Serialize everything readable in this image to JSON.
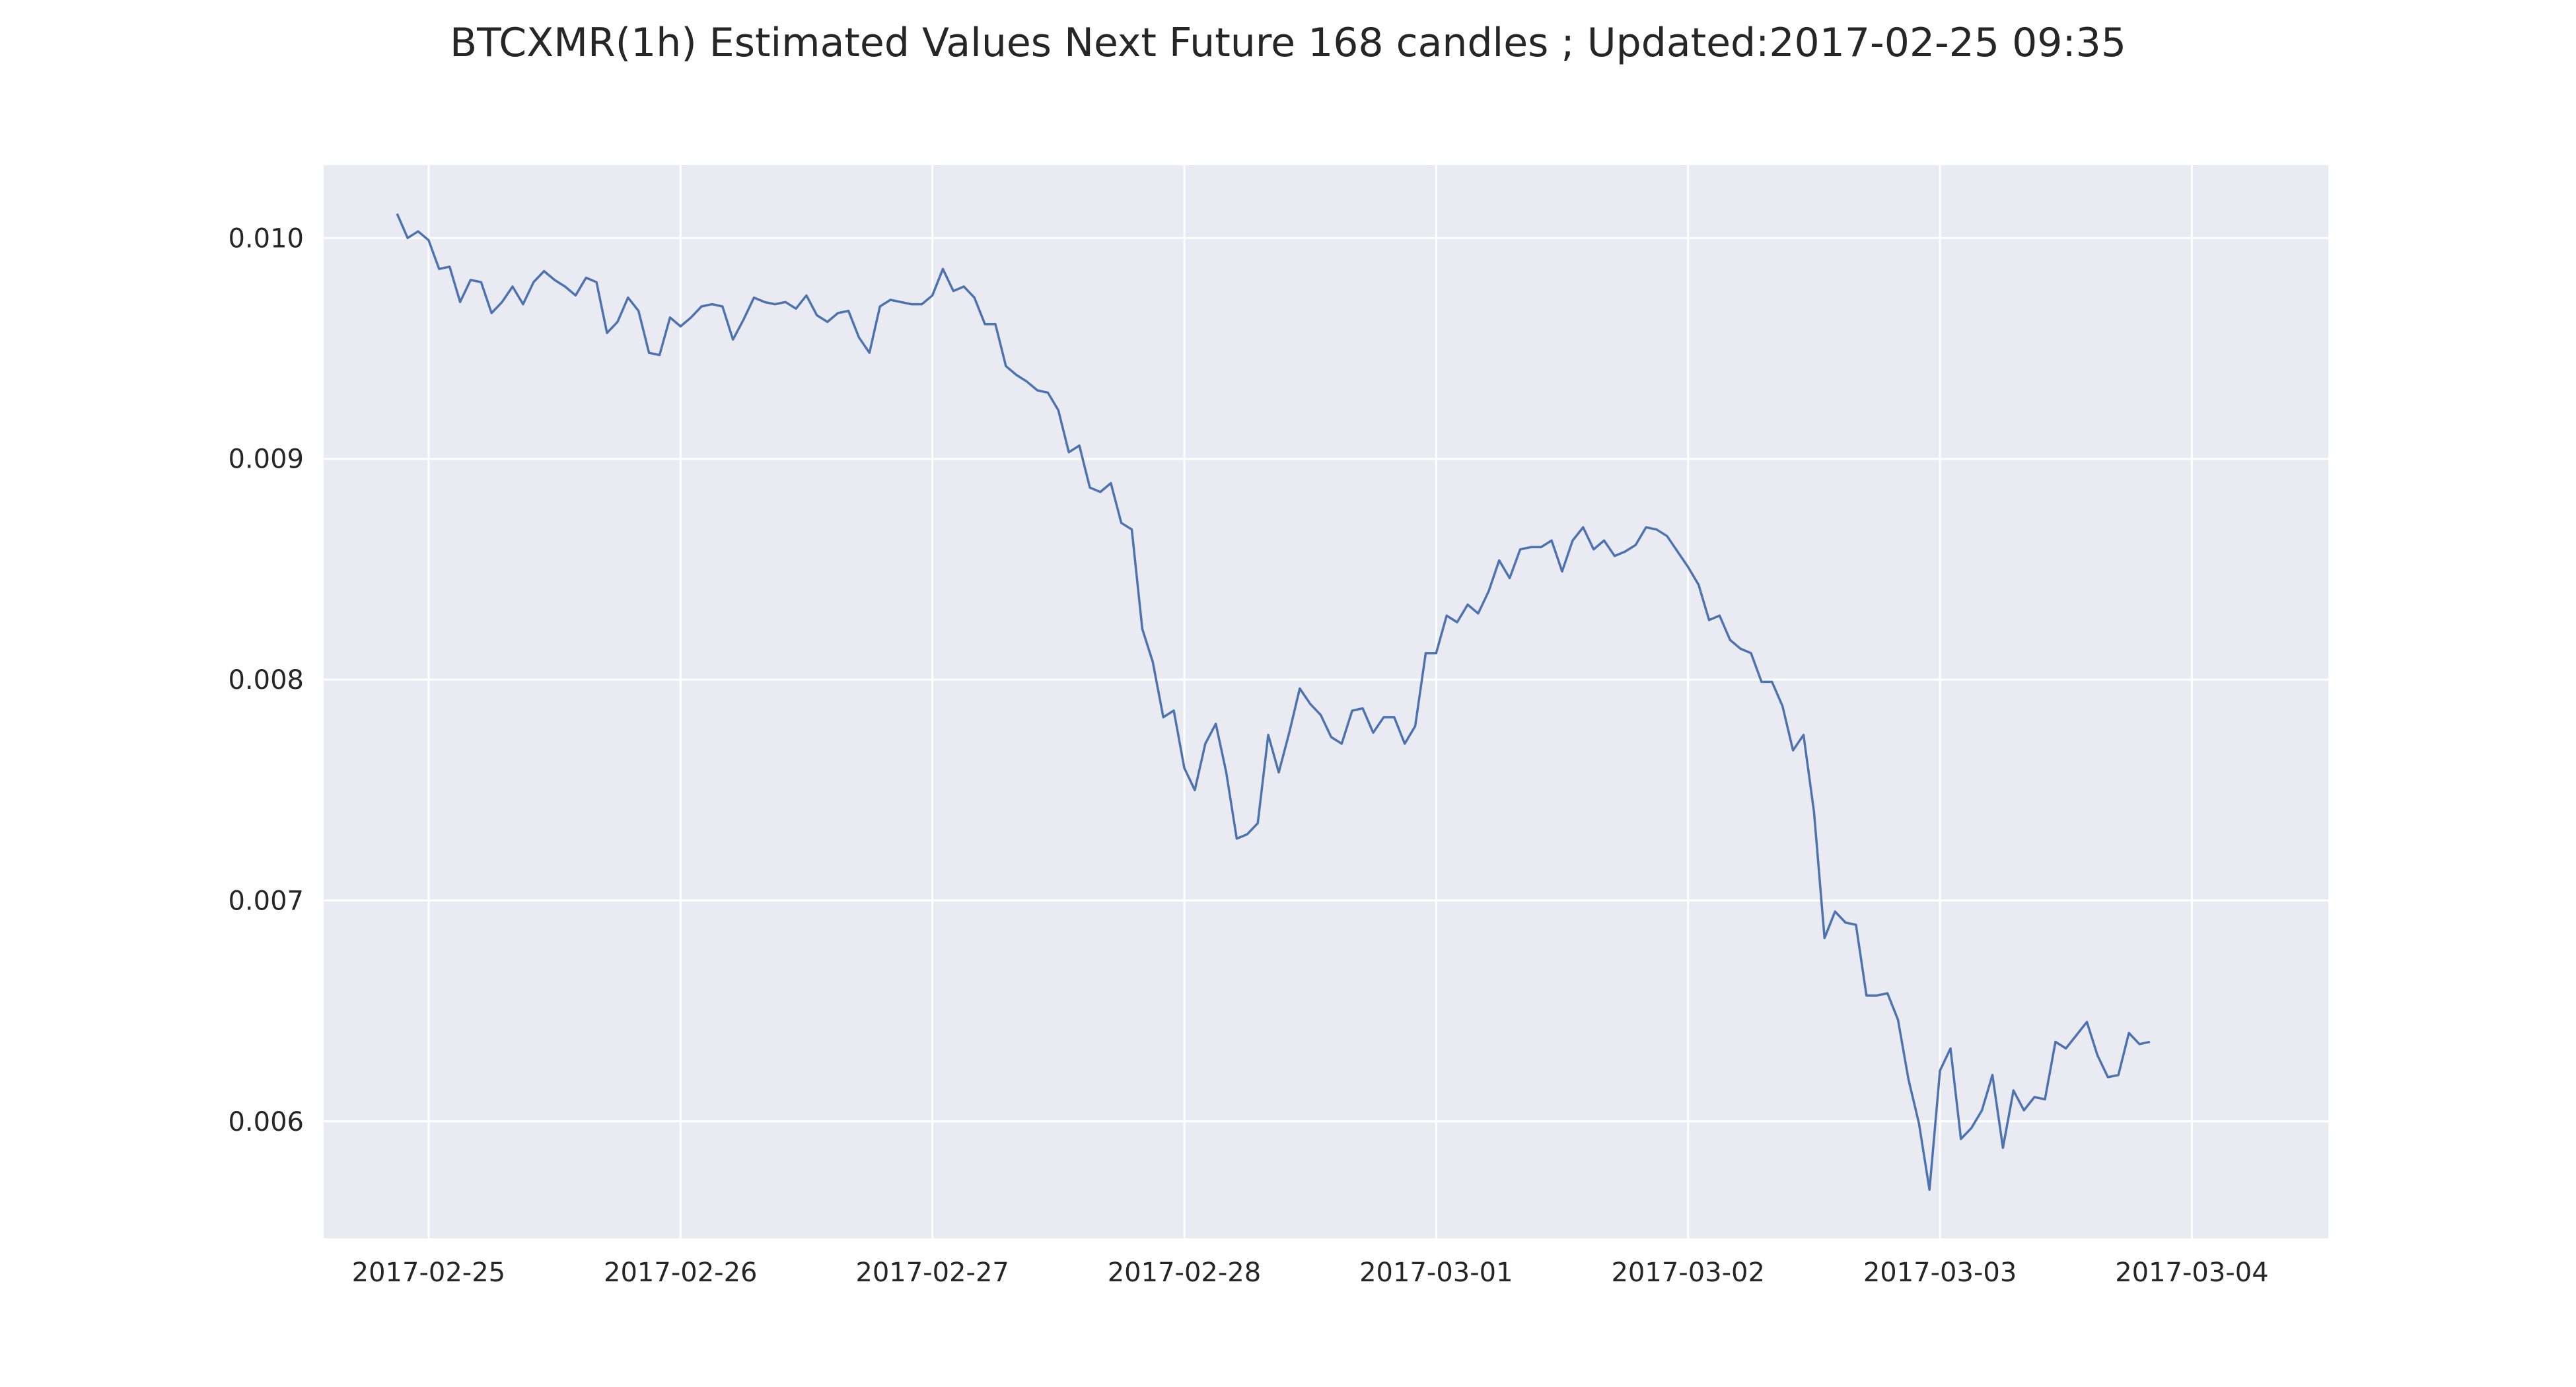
{
  "chart_data": {
    "type": "line",
    "title": "BTCXMR(1h) Estimated Values Next Future 168 candles ; Updated:2017-02-25 09:35",
    "xlabel": "",
    "ylabel": "",
    "x_axis_type": "datetime",
    "x_start": "2017-02-24 21:00",
    "x_step_hours": 1,
    "xlim": [
      "2017-02-24 14:00",
      "2017-03-04 13:00"
    ],
    "ylim": [
      0.00547,
      0.01033
    ],
    "x_ticks": [
      "2017-02-25",
      "2017-02-26",
      "2017-02-27",
      "2017-02-28",
      "2017-03-01",
      "2017-03-02",
      "2017-03-03",
      "2017-03-04"
    ],
    "y_ticks": [
      "0.006",
      "0.007",
      "0.008",
      "0.009",
      "0.010"
    ],
    "y_tick_values": [
      0.006,
      0.007,
      0.008,
      0.009,
      0.01
    ],
    "grid": true,
    "background": "#eaeaf2",
    "grid_color": "#ffffff",
    "line_color": "#4c72b0",
    "series": [
      {
        "values": [
          0.01011,
          0.01,
          0.01003,
          0.00999,
          0.00986,
          0.00987,
          0.00971,
          0.00981,
          0.0098,
          0.00966,
          0.00971,
          0.00978,
          0.0097,
          0.0098,
          0.00985,
          0.00981,
          0.00978,
          0.00974,
          0.00982,
          0.0098,
          0.00957,
          0.00962,
          0.00973,
          0.00967,
          0.00948,
          0.00947,
          0.00964,
          0.0096,
          0.00964,
          0.00969,
          0.0097,
          0.00969,
          0.00954,
          0.00963,
          0.00973,
          0.00971,
          0.0097,
          0.00971,
          0.00968,
          0.00974,
          0.00965,
          0.00962,
          0.00966,
          0.00967,
          0.00955,
          0.00948,
          0.00969,
          0.00972,
          0.00971,
          0.0097,
          0.0097,
          0.00974,
          0.00986,
          0.00976,
          0.00978,
          0.00973,
          0.00961,
          0.00961,
          0.00942,
          0.00938,
          0.00935,
          0.00931,
          0.0093,
          0.00922,
          0.00903,
          0.00906,
          0.00887,
          0.00885,
          0.00889,
          0.00871,
          0.00868,
          0.00823,
          0.00808,
          0.00783,
          0.00786,
          0.0076,
          0.0075,
          0.00771,
          0.0078,
          0.00758,
          0.00728,
          0.0073,
          0.00735,
          0.00775,
          0.00758,
          0.00776,
          0.00796,
          0.00789,
          0.00784,
          0.00774,
          0.00771,
          0.00786,
          0.00787,
          0.00776,
          0.00783,
          0.00783,
          0.00771,
          0.00779,
          0.00812,
          0.00812,
          0.00829,
          0.00826,
          0.00834,
          0.0083,
          0.0084,
          0.00854,
          0.00846,
          0.00859,
          0.0086,
          0.0086,
          0.00863,
          0.00849,
          0.00863,
          0.00869,
          0.00859,
          0.00863,
          0.00856,
          0.00858,
          0.00861,
          0.00869,
          0.00868,
          0.00865,
          0.00858,
          0.00851,
          0.00843,
          0.00827,
          0.00829,
          0.00818,
          0.00814,
          0.00812,
          0.00799,
          0.00799,
          0.00788,
          0.00768,
          0.00775,
          0.0074,
          0.00683,
          0.00695,
          0.0069,
          0.00689,
          0.00657,
          0.00657,
          0.00658,
          0.00646,
          0.00619,
          0.00599,
          0.00569,
          0.00623,
          0.00633,
          0.00592,
          0.00597,
          0.00605,
          0.00621,
          0.00588,
          0.00614,
          0.00605,
          0.00611,
          0.0061,
          0.00636,
          0.00633,
          0.00639,
          0.00645,
          0.0063,
          0.0062,
          0.00621,
          0.0064,
          0.00635,
          0.00636
        ]
      }
    ]
  }
}
